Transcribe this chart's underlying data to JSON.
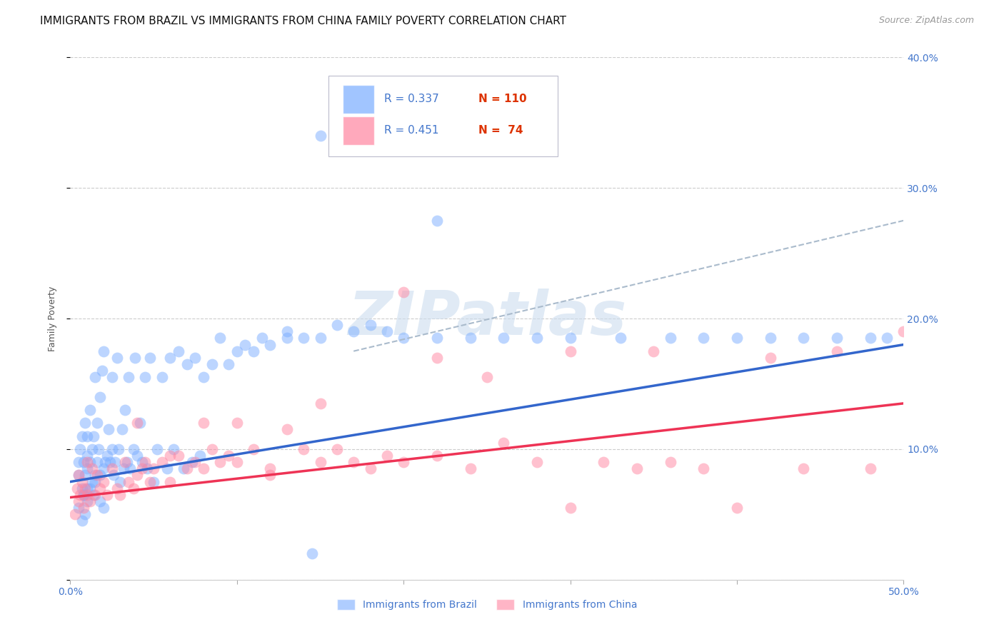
{
  "title": "IMMIGRANTS FROM BRAZIL VS IMMIGRANTS FROM CHINA FAMILY POVERTY CORRELATION CHART",
  "source_text": "Source: ZipAtlas.com",
  "xlabel_brazil": "Immigrants from Brazil",
  "xlabel_china": "Immigrants from China",
  "ylabel": "Family Poverty",
  "xlim": [
    0.0,
    0.5
  ],
  "ylim": [
    0.0,
    0.4
  ],
  "color_brazil": "#7aadff",
  "color_china": "#ff85a0",
  "color_brazil_line": "#3366cc",
  "color_china_line": "#ee3355",
  "color_dashed": "#aabbcc",
  "color_tick": "#4477cc",
  "color_grid": "#cccccc",
  "background_color": "#ffffff",
  "brazil_trend_x": [
    0.0,
    0.5
  ],
  "brazil_trend_y": [
    0.075,
    0.18
  ],
  "china_trend_x": [
    0.0,
    0.5
  ],
  "china_trend_y": [
    0.063,
    0.135
  ],
  "dashed_trend_x": [
    0.17,
    0.5
  ],
  "dashed_trend_y": [
    0.175,
    0.275
  ],
  "brazil_x": [
    0.005,
    0.005,
    0.006,
    0.007,
    0.007,
    0.008,
    0.008,
    0.009,
    0.009,
    0.01,
    0.01,
    0.01,
    0.01,
    0.012,
    0.012,
    0.013,
    0.013,
    0.014,
    0.014,
    0.015,
    0.015,
    0.016,
    0.016,
    0.017,
    0.018,
    0.018,
    0.019,
    0.02,
    0.02,
    0.021,
    0.022,
    0.023,
    0.024,
    0.025,
    0.025,
    0.026,
    0.027,
    0.028,
    0.029,
    0.03,
    0.031,
    0.032,
    0.033,
    0.034,
    0.035,
    0.036,
    0.038,
    0.039,
    0.04,
    0.042,
    0.043,
    0.045,
    0.046,
    0.048,
    0.05,
    0.052,
    0.055,
    0.058,
    0.06,
    0.062,
    0.065,
    0.068,
    0.07,
    0.073,
    0.075,
    0.078,
    0.08,
    0.085,
    0.09,
    0.095,
    0.1,
    0.105,
    0.11,
    0.115,
    0.12,
    0.13,
    0.14,
    0.145,
    0.15,
    0.16,
    0.17,
    0.18,
    0.19,
    0.2,
    0.22,
    0.24,
    0.26,
    0.28,
    0.3,
    0.33,
    0.36,
    0.38,
    0.4,
    0.42,
    0.44,
    0.46,
    0.48,
    0.49,
    0.15,
    0.22,
    0.13,
    0.005,
    0.007,
    0.008,
    0.009,
    0.01,
    0.012,
    0.015,
    0.018,
    0.02
  ],
  "brazil_y": [
    0.08,
    0.09,
    0.1,
    0.07,
    0.11,
    0.065,
    0.09,
    0.08,
    0.12,
    0.085,
    0.095,
    0.11,
    0.07,
    0.09,
    0.13,
    0.075,
    0.1,
    0.065,
    0.11,
    0.08,
    0.155,
    0.09,
    0.12,
    0.1,
    0.14,
    0.08,
    0.16,
    0.085,
    0.175,
    0.09,
    0.095,
    0.115,
    0.09,
    0.1,
    0.155,
    0.08,
    0.09,
    0.17,
    0.1,
    0.075,
    0.115,
    0.085,
    0.13,
    0.09,
    0.155,
    0.085,
    0.1,
    0.17,
    0.095,
    0.12,
    0.09,
    0.155,
    0.085,
    0.17,
    0.075,
    0.1,
    0.155,
    0.085,
    0.17,
    0.1,
    0.175,
    0.085,
    0.165,
    0.09,
    0.17,
    0.095,
    0.155,
    0.165,
    0.185,
    0.165,
    0.175,
    0.18,
    0.175,
    0.185,
    0.18,
    0.19,
    0.185,
    0.02,
    0.185,
    0.195,
    0.19,
    0.195,
    0.19,
    0.185,
    0.185,
    0.185,
    0.185,
    0.185,
    0.185,
    0.185,
    0.185,
    0.185,
    0.185,
    0.185,
    0.185,
    0.185,
    0.185,
    0.185,
    0.34,
    0.275,
    0.185,
    0.055,
    0.045,
    0.065,
    0.05,
    0.06,
    0.07,
    0.075,
    0.06,
    0.055
  ],
  "china_x": [
    0.003,
    0.004,
    0.005,
    0.005,
    0.006,
    0.007,
    0.008,
    0.009,
    0.01,
    0.01,
    0.012,
    0.013,
    0.015,
    0.016,
    0.018,
    0.02,
    0.022,
    0.025,
    0.028,
    0.03,
    0.033,
    0.035,
    0.038,
    0.04,
    0.043,
    0.045,
    0.048,
    0.05,
    0.055,
    0.06,
    0.065,
    0.07,
    0.075,
    0.08,
    0.085,
    0.09,
    0.095,
    0.1,
    0.11,
    0.12,
    0.13,
    0.14,
    0.15,
    0.16,
    0.17,
    0.18,
    0.19,
    0.2,
    0.22,
    0.24,
    0.26,
    0.28,
    0.3,
    0.32,
    0.34,
    0.36,
    0.38,
    0.4,
    0.42,
    0.44,
    0.46,
    0.48,
    0.5,
    0.25,
    0.3,
    0.35,
    0.2,
    0.15,
    0.1,
    0.22,
    0.12,
    0.08,
    0.06,
    0.04
  ],
  "china_y": [
    0.05,
    0.07,
    0.06,
    0.08,
    0.065,
    0.075,
    0.055,
    0.07,
    0.065,
    0.09,
    0.06,
    0.085,
    0.065,
    0.08,
    0.07,
    0.075,
    0.065,
    0.085,
    0.07,
    0.065,
    0.09,
    0.075,
    0.07,
    0.08,
    0.085,
    0.09,
    0.075,
    0.085,
    0.09,
    0.075,
    0.095,
    0.085,
    0.09,
    0.085,
    0.1,
    0.09,
    0.095,
    0.09,
    0.1,
    0.085,
    0.115,
    0.1,
    0.09,
    0.1,
    0.09,
    0.085,
    0.095,
    0.09,
    0.17,
    0.085,
    0.105,
    0.09,
    0.055,
    0.09,
    0.085,
    0.09,
    0.085,
    0.055,
    0.17,
    0.085,
    0.175,
    0.085,
    0.19,
    0.155,
    0.175,
    0.175,
    0.22,
    0.135,
    0.12,
    0.095,
    0.08,
    0.12,
    0.095,
    0.12
  ],
  "watermark": "ZIPatlas",
  "title_fontsize": 11,
  "source_fontsize": 9,
  "axis_label_fontsize": 9,
  "tick_fontsize": 10,
  "legend_fontsize": 11
}
